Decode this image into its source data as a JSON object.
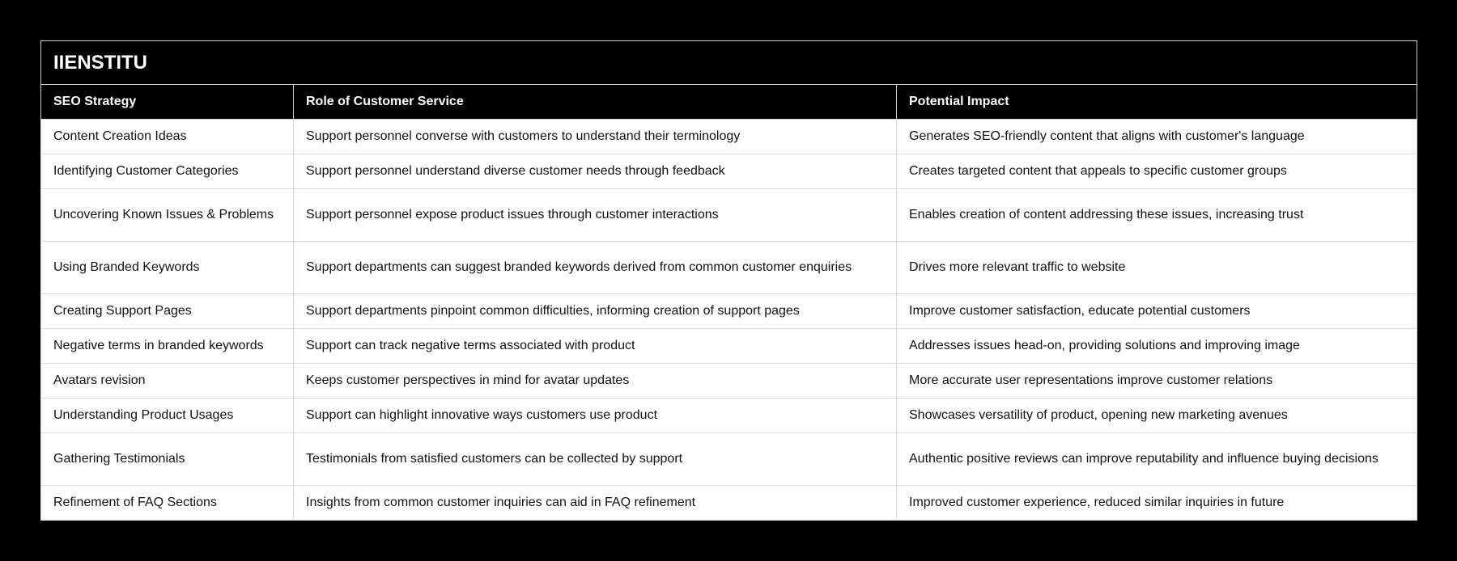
{
  "table": {
    "title": "IIENSTITU",
    "headers": [
      "SEO Strategy",
      "Role of Customer Service",
      "Potential Impact"
    ],
    "rows": [
      [
        "Content Creation Ideas",
        "Support personnel converse with customers to understand their terminology",
        "Generates SEO-friendly content that aligns with customer's language"
      ],
      [
        "Identifying Customer Categories",
        "Support personnel understand diverse customer needs through feedback",
        "Creates targeted content that appeals to specific customer groups"
      ],
      [
        "Uncovering Known Issues & Problems",
        "Support personnel expose product issues through customer interactions",
        "Enables creation of content addressing these issues, increasing trust"
      ],
      [
        "Using Branded Keywords",
        "Support departments can suggest branded keywords derived from common customer enquiries",
        "Drives more relevant traffic to website"
      ],
      [
        "Creating Support Pages",
        "Support departments pinpoint common difficulties, informing creation of support pages",
        "Improve customer satisfaction, educate potential customers"
      ],
      [
        "Negative terms in branded keywords",
        "Support can track negative terms associated with product",
        "Addresses issues head-on, providing solutions and improving image"
      ],
      [
        "Avatars revision",
        "Keeps customer perspectives in mind for avatar updates",
        "More accurate user representations improve customer relations"
      ],
      [
        "Understanding Product Usages",
        "Support can highlight innovative ways customers use product",
        "Showcases versatility of product, opening new marketing avenues"
      ],
      [
        "Gathering Testimonials",
        "Testimonials from satisfied customers can be collected by support",
        "Authentic positive reviews can improve reputability and influence buying decisions"
      ],
      [
        "Refinement of FAQ Sections",
        "Insights from common customer inquiries can aid in FAQ refinement",
        "Improved customer experience, reduced similar inquiries in future"
      ]
    ]
  },
  "colors": {
    "background": "#000000",
    "header_bg": "#000000",
    "header_text": "#ffffff",
    "cell_bg": "#ffffff",
    "cell_text": "#111111",
    "border": "#dcdcdc"
  }
}
